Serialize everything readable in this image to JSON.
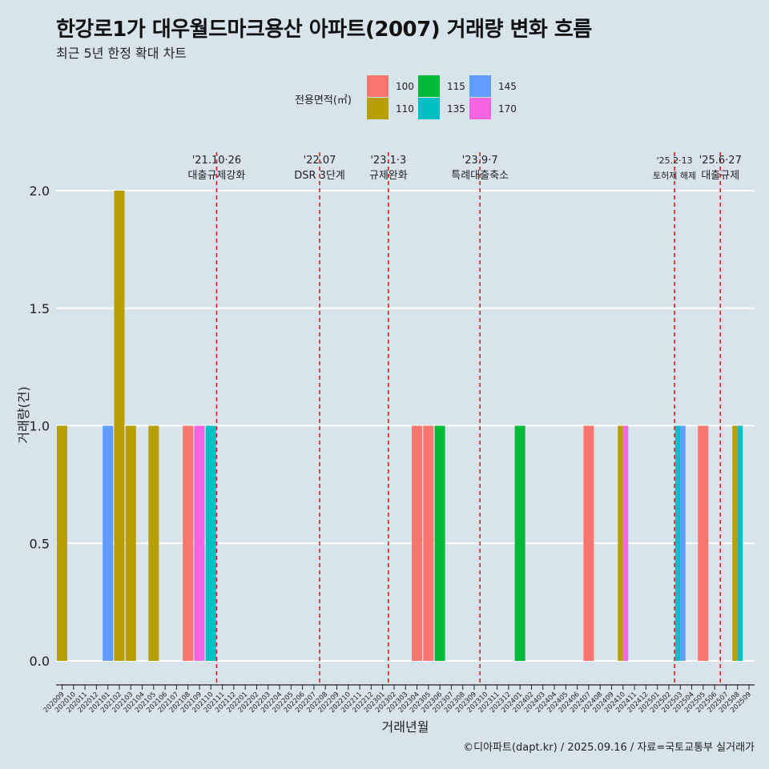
{
  "title": "한강로1가 대우월드마크용산 아파트(2007) 거래량 변화 흐름",
  "subtitle": "최근 5년 한정 확대 차트",
  "caption": "©디아파트(dapt.kr) / 2025.09.16 / 자료=국토교통부 실거래가",
  "legend": {
    "title": "전용면적(㎡)",
    "items": [
      {
        "label": "100",
        "color": "#F8766D"
      },
      {
        "label": "110",
        "color": "#B79F00"
      },
      {
        "label": "115",
        "color": "#00BA38"
      },
      {
        "label": "135",
        "color": "#00BFC4"
      },
      {
        "label": "145",
        "color": "#619CFF"
      },
      {
        "label": "170",
        "color": "#F564E3"
      }
    ]
  },
  "chart_data": {
    "type": "bar",
    "xlabel": "거래년월",
    "ylabel": "거래량(건)",
    "ylim": [
      -0.1,
      2.1
    ],
    "yticks": [
      "0.0",
      "0.5",
      "1.0",
      "1.5",
      "2.0"
    ],
    "categories": [
      "202009",
      "202010",
      "202011",
      "202012",
      "202101",
      "202102",
      "202103",
      "202104",
      "202105",
      "202106",
      "202107",
      "202108",
      "202109",
      "202110",
      "202111",
      "202112",
      "202201",
      "202202",
      "202203",
      "202204",
      "202205",
      "202206",
      "202207",
      "202208",
      "202209",
      "202210",
      "202211",
      "202212",
      "202301",
      "202302",
      "202303",
      "202304",
      "202305",
      "202306",
      "202307",
      "202308",
      "202309",
      "202310",
      "202311",
      "202312",
      "202401",
      "202402",
      "202403",
      "202404",
      "202405",
      "202406",
      "202407",
      "202408",
      "202409",
      "202410",
      "202411",
      "202412",
      "202501",
      "202502",
      "202503",
      "202504",
      "202505",
      "202506",
      "202507",
      "202508",
      "202509"
    ],
    "series": [
      {
        "name": "100",
        "values": [
          0,
          0,
          0,
          0,
          0,
          0,
          0,
          0,
          0,
          0,
          0,
          1,
          0,
          0,
          0,
          0,
          0,
          0,
          0,
          0,
          0,
          0,
          0,
          0,
          0,
          0,
          0,
          0,
          0,
          0,
          0,
          1,
          1,
          0,
          0,
          0,
          0,
          0,
          0,
          0,
          0,
          0,
          0,
          0,
          0,
          0,
          1,
          0,
          0,
          0,
          0,
          0,
          0,
          0,
          0,
          0,
          1,
          0,
          0,
          0,
          0
        ]
      },
      {
        "name": "110",
        "values": [
          1,
          0,
          0,
          0,
          0,
          2,
          1,
          0,
          1,
          0,
          0,
          0,
          0,
          0,
          0,
          0,
          0,
          0,
          0,
          0,
          0,
          0,
          0,
          0,
          0,
          0,
          0,
          0,
          0,
          0,
          0,
          0,
          0,
          0,
          0,
          0,
          0,
          0,
          0,
          0,
          0,
          0,
          0,
          0,
          0,
          0,
          0,
          0,
          0,
          1,
          0,
          0,
          0,
          0,
          0,
          0,
          0,
          0,
          0,
          1,
          0
        ]
      },
      {
        "name": "115",
        "values": [
          0,
          0,
          0,
          0,
          0,
          0,
          0,
          0,
          0,
          0,
          0,
          0,
          0,
          0,
          0,
          0,
          0,
          0,
          0,
          0,
          0,
          0,
          0,
          0,
          0,
          0,
          0,
          0,
          0,
          0,
          0,
          0,
          0,
          1,
          0,
          0,
          0,
          0,
          0,
          0,
          1,
          0,
          0,
          0,
          0,
          0,
          0,
          0,
          0,
          0,
          0,
          0,
          0,
          0,
          0,
          0,
          0,
          0,
          0,
          0,
          0
        ]
      },
      {
        "name": "135",
        "values": [
          0,
          0,
          0,
          0,
          0,
          0,
          0,
          0,
          0,
          0,
          0,
          0,
          0,
          1,
          0,
          0,
          0,
          0,
          0,
          0,
          0,
          0,
          0,
          0,
          0,
          0,
          0,
          0,
          0,
          0,
          0,
          0,
          0,
          0,
          0,
          0,
          0,
          0,
          0,
          0,
          0,
          0,
          0,
          0,
          0,
          0,
          0,
          0,
          0,
          0,
          0,
          0,
          0,
          0,
          1,
          0,
          0,
          0,
          0,
          1,
          0
        ]
      },
      {
        "name": "145",
        "values": [
          0,
          0,
          0,
          0,
          1,
          0,
          0,
          0,
          0,
          0,
          0,
          0,
          0,
          0,
          0,
          0,
          0,
          0,
          0,
          0,
          0,
          0,
          0,
          0,
          0,
          0,
          0,
          0,
          0,
          0,
          0,
          0,
          0,
          0,
          0,
          0,
          0,
          0,
          0,
          0,
          0,
          0,
          0,
          0,
          0,
          0,
          0,
          0,
          0,
          0,
          0,
          0,
          0,
          0,
          1,
          0,
          0,
          0,
          0,
          0,
          0
        ]
      },
      {
        "name": "170",
        "values": [
          0,
          0,
          0,
          0,
          0,
          0,
          0,
          0,
          0,
          0,
          0,
          0,
          1,
          0,
          0,
          0,
          0,
          0,
          0,
          0,
          0,
          0,
          0,
          0,
          0,
          0,
          0,
          0,
          0,
          0,
          0,
          0,
          0,
          0,
          0,
          0,
          0,
          0,
          0,
          0,
          0,
          0,
          0,
          0,
          0,
          0,
          0,
          0,
          0,
          1,
          0,
          0,
          0,
          0,
          0,
          0,
          0,
          0,
          0,
          0,
          0
        ]
      }
    ],
    "annotations": [
      {
        "x": "202110",
        "line1": "'21.10·26",
        "line2": "대출규제강화"
      },
      {
        "x": "202207",
        "line1": "'22.07",
        "line2": "DSR 3단계"
      },
      {
        "x": "202301",
        "line1": "'23.1·3",
        "line2": "규제완화"
      },
      {
        "x": "202309",
        "line1": "'23.9·7",
        "line2": "특례대출축소"
      },
      {
        "x": "202502",
        "line1": "'25.2·13",
        "line2": "토허제 해제"
      },
      {
        "x": "202506",
        "line1": "'25.6·27",
        "line2": "대출규제"
      }
    ],
    "grid": true
  }
}
